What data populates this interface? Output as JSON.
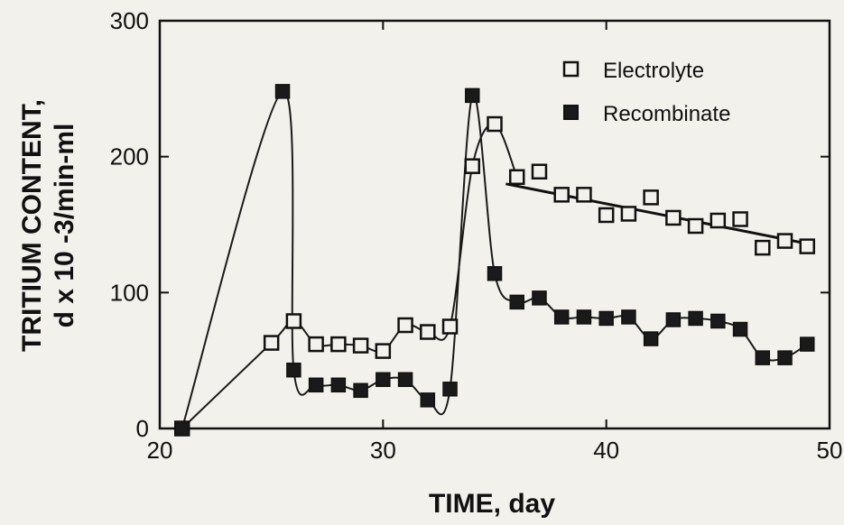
{
  "chart_data": {
    "type": "scatter",
    "xlabel": "TIME, day",
    "ylabel_line1": "TRITIUM CONTENT,",
    "ylabel_line2": "d x 10 -3/min-ml",
    "xlim": [
      20,
      50
    ],
    "ylim": [
      0,
      300
    ],
    "x_ticks": [
      20,
      30,
      40,
      50
    ],
    "y_ticks": [
      0,
      100,
      200,
      300
    ],
    "legend_position": "top-right",
    "grid": false,
    "series": [
      {
        "name": "Electrolyte",
        "marker": "open-square",
        "x": [
          21,
          25,
          26,
          27,
          28,
          29,
          30,
          31,
          32,
          33,
          34,
          35,
          36,
          37,
          38,
          39,
          40,
          41,
          42,
          43,
          44,
          45,
          46,
          47,
          48,
          49
        ],
        "y": [
          0,
          63,
          79,
          62,
          62,
          61,
          57,
          76,
          71,
          75,
          193,
          224,
          185,
          189,
          172,
          172,
          157,
          158,
          170,
          155,
          149,
          153,
          154,
          133,
          138,
          134
        ]
      },
      {
        "name": "Recombinate",
        "marker": "filled-square",
        "x": [
          21,
          25.5,
          26,
          27,
          28,
          29,
          30,
          31,
          32,
          33,
          34,
          35,
          36,
          37,
          38,
          39,
          40,
          41,
          42,
          43,
          44,
          45,
          46,
          47,
          48,
          49
        ],
        "y": [
          0,
          248,
          43,
          32,
          32,
          28,
          36,
          36,
          21,
          29,
          245,
          114,
          93,
          96,
          82,
          82,
          81,
          82,
          66,
          80,
          81,
          79,
          73,
          52,
          52,
          62
        ]
      }
    ],
    "trend_line": {
      "x": [
        35.5,
        49
      ],
      "y": [
        180,
        136
      ]
    }
  }
}
